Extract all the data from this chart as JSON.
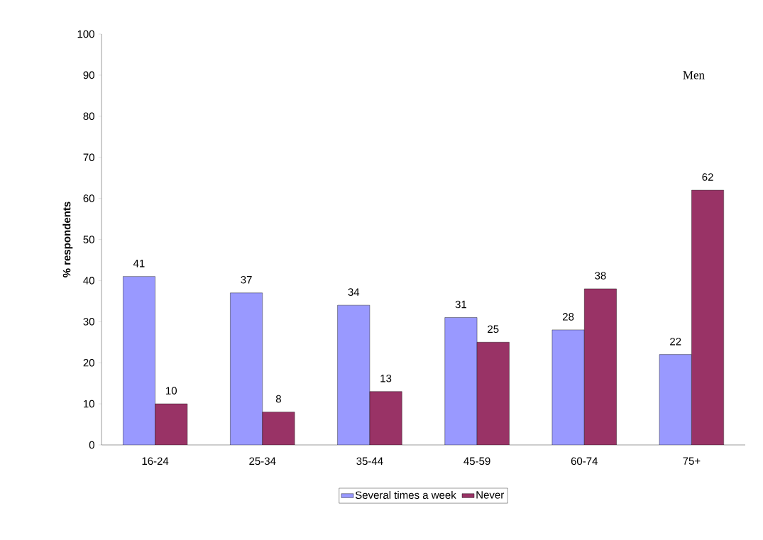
{
  "chart_data": {
    "type": "bar",
    "ylabel": "% respondents",
    "categories": [
      "16-24",
      "25-34",
      "35-44",
      "45-59",
      "60-74",
      "75+"
    ],
    "series": [
      {
        "name": "Several times a week",
        "color": "#9999ff",
        "values": [
          41,
          37,
          34,
          31,
          28,
          22
        ]
      },
      {
        "name": "Never",
        "color": "#993366",
        "values": [
          10,
          8,
          13,
          25,
          38,
          62
        ]
      }
    ],
    "ylim": [
      0,
      100
    ],
    "yticks": [
      0,
      10,
      20,
      30,
      40,
      50,
      60,
      70,
      80,
      90,
      100
    ],
    "data_labels": true,
    "legend": "bottom",
    "grid": false,
    "annotations": [
      "Men"
    ]
  }
}
